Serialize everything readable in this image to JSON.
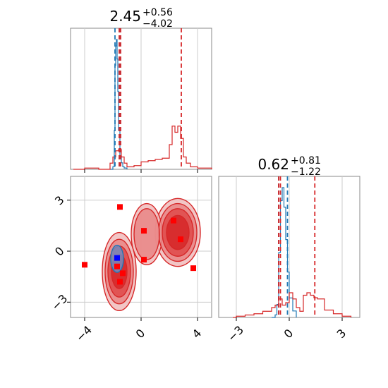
{
  "chart_data": [
    {
      "type": "line",
      "panel": "marginal-x",
      "title_main": "2.45",
      "title_plus": "+0.56",
      "title_minus": "−4.02",
      "xlim": [
        -5,
        5
      ],
      "grid": true,
      "series": [
        {
          "color": "#1f77b4",
          "x": [
            -2.2,
            -2.0,
            -1.9,
            -1.85,
            -1.8,
            -1.75,
            -1.7,
            -1.65,
            -1.6,
            -1.5,
            -1.4,
            -1.3,
            -1.2,
            -1.0
          ],
          "y": [
            0.0,
            0.02,
            0.3,
            0.8,
            0.95,
            1.0,
            0.85,
            0.6,
            0.3,
            0.1,
            0.05,
            0.02,
            0.01,
            0.0
          ]
        },
        {
          "color": "#d62728",
          "x": [
            -4.8,
            -4.0,
            -3.0,
            -2.2,
            -2.0,
            -1.8,
            -1.6,
            -1.4,
            -1.2,
            -1.0,
            -0.5,
            0.0,
            0.5,
            1.0,
            1.5,
            2.0,
            2.2,
            2.4,
            2.6,
            2.8,
            3.0,
            3.2,
            3.5,
            4.0,
            5.0
          ],
          "y": [
            0.0,
            0.01,
            0.0,
            0.05,
            0.1,
            0.15,
            0.16,
            0.1,
            0.05,
            0.02,
            0.03,
            0.06,
            0.07,
            0.08,
            0.09,
            0.2,
            0.35,
            0.3,
            0.35,
            0.25,
            0.1,
            0.05,
            0.02,
            0.01,
            0.0
          ]
        }
      ],
      "quantiles": {
        "blue": [
          -1.85,
          -1.5
        ],
        "red": [
          -1.55,
          -1.45,
          2.85
        ]
      },
      "xticks": [
        -4,
        0,
        4
      ]
    },
    {
      "type": "line",
      "panel": "marginal-y",
      "title_main": "0.62",
      "title_plus": "+0.81",
      "title_minus": "−1.22",
      "xlim": [
        -4,
        4
      ],
      "grid": true,
      "series": [
        {
          "color": "#1f77b4",
          "x": [
            -1.0,
            -0.8,
            -0.7,
            -0.6,
            -0.5,
            -0.4,
            -0.3,
            -0.2,
            -0.1,
            0.0,
            0.2,
            0.4
          ],
          "y": [
            0.0,
            0.02,
            0.1,
            0.5,
            0.9,
            1.0,
            0.85,
            0.6,
            0.35,
            0.15,
            0.05,
            0.0
          ]
        },
        {
          "color": "#d62728",
          "x": [
            -3.2,
            -3.0,
            -2.5,
            -2.0,
            -1.5,
            -1.0,
            -0.8,
            -0.6,
            -0.4,
            -0.2,
            0.0,
            0.2,
            0.4,
            0.6,
            0.8,
            1.0,
            1.2,
            1.4,
            1.6,
            2.0,
            2.5,
            3.0,
            3.5
          ],
          "y": [
            0.0,
            0.01,
            0.02,
            0.03,
            0.05,
            0.08,
            0.1,
            0.15,
            0.1,
            0.12,
            0.2,
            0.15,
            0.08,
            0.05,
            0.18,
            0.2,
            0.18,
            0.16,
            0.15,
            0.06,
            0.03,
            0.01,
            0.0
          ]
        }
      ],
      "quantiles": {
        "blue": [
          -0.6,
          -0.1
        ],
        "red": [
          -0.6,
          -0.5,
          1.45
        ]
      },
      "xticks": [
        -3,
        0,
        3
      ]
    },
    {
      "type": "scatter",
      "panel": "joint",
      "xlim": [
        -5,
        5
      ],
      "ylim": [
        -3.9,
        4.4
      ],
      "grid": true,
      "xticks": [
        -4,
        0,
        4
      ],
      "yticks": [
        -3,
        0,
        3
      ],
      "red_markers": [
        {
          "x": -4.0,
          "y": -0.8
        },
        {
          "x": -1.5,
          "y": 2.6
        },
        {
          "x": 0.2,
          "y": 1.2
        },
        {
          "x": 2.3,
          "y": 1.8
        },
        {
          "x": 2.8,
          "y": 0.7
        },
        {
          "x": 3.7,
          "y": -1.0
        },
        {
          "x": 0.2,
          "y": -0.5
        },
        {
          "x": -1.3,
          "y": -1.3
        },
        {
          "x": -1.5,
          "y": -1.8
        },
        {
          "x": -1.7,
          "y": -0.9
        }
      ],
      "blue_markers": [
        {
          "x": -1.7,
          "y": -0.4
        }
      ],
      "red_color": "#ff0000",
      "blue_color": "#0000ff",
      "contour_colors": [
        "#f0bcbc",
        "#e98585",
        "#df4a4a",
        "#d62728"
      ],
      "blue_contour_color": "#1f77b4"
    }
  ]
}
